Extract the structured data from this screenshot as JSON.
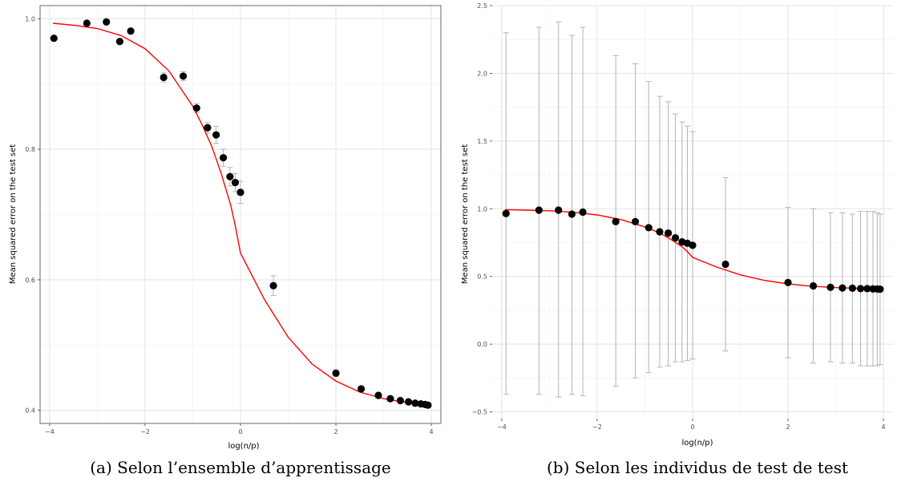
{
  "chart_data": [
    {
      "type": "scatter",
      "xlabel": "log(n/p)",
      "ylabel": "Mean squared error on the test set",
      "caption": "(a) Selon l’ensemble d’apprentissage",
      "xlim": [
        -4.2,
        4.2
      ],
      "ylim": [
        0.38,
        1.02
      ],
      "xticks": [
        -4,
        -2,
        0,
        2,
        4
      ],
      "yticks": [
        0.4,
        0.6,
        0.8,
        1.0
      ],
      "xtick_labels": [
        "−4",
        "−2",
        "0",
        "2",
        "4"
      ],
      "ytick_labels": [
        "0.4",
        "0.6",
        "0.8",
        "1.0"
      ],
      "grid": true,
      "colors": {
        "points": "#000000",
        "fit": "#ff0000",
        "errorbars": "#b3b3b3"
      },
      "x": [
        -3.91,
        -3.22,
        -2.81,
        -2.53,
        -2.3,
        -1.61,
        -1.2,
        -0.92,
        -0.69,
        -0.51,
        -0.36,
        -0.22,
        -0.11,
        0.0,
        0.69,
        2.0,
        2.53,
        2.89,
        3.14,
        3.35,
        3.52,
        3.66,
        3.78,
        3.87,
        3.93
      ],
      "y": [
        0.97,
        0.993,
        0.995,
        0.965,
        0.981,
        0.91,
        0.912,
        0.863,
        0.833,
        0.822,
        0.787,
        0.758,
        0.749,
        0.734,
        0.591,
        0.457,
        0.433,
        0.423,
        0.418,
        0.415,
        0.413,
        0.411,
        0.41,
        0.409,
        0.408
      ],
      "err": [
        0.0,
        0.002,
        0.002,
        0.002,
        0.002,
        0.007,
        0.007,
        0.007,
        0.008,
        0.013,
        0.013,
        0.014,
        0.014,
        0.017,
        0.015,
        0.005,
        0.002,
        0.002,
        0.002,
        0.002,
        0.001,
        0.001,
        0.001,
        0.001,
        0.001
      ],
      "fit_x": [
        -3.93,
        -3.5,
        -3.0,
        -2.5,
        -2.0,
        -1.5,
        -1.0,
        -0.8,
        -0.6,
        -0.4,
        -0.2,
        -0.1,
        0.0,
        0.5,
        1.0,
        1.5,
        2.0,
        2.5,
        3.0,
        3.5,
        3.93
      ],
      "fit_y": [
        0.993,
        0.99,
        0.985,
        0.974,
        0.954,
        0.92,
        0.866,
        0.837,
        0.804,
        0.762,
        0.713,
        0.68,
        0.641,
        0.57,
        0.512,
        0.471,
        0.445,
        0.428,
        0.418,
        0.412,
        0.408
      ]
    },
    {
      "type": "scatter",
      "xlabel": "log(n/p)",
      "ylabel": "Mean squared error on the test set",
      "caption": "(b) Selon les individus de test de test",
      "xlim": [
        -4.2,
        4.2
      ],
      "ylim": [
        -0.55,
        2.5
      ],
      "xticks": [
        -4,
        -2,
        0,
        2,
        4
      ],
      "yticks": [
        -0.5,
        0.0,
        0.5,
        1.0,
        1.5,
        2.0,
        2.5
      ],
      "xtick_labels": [
        "−4",
        "−2",
        "0",
        "2",
        "4"
      ],
      "ytick_labels": [
        "−0.5",
        "0.0",
        "0.5",
        "1.0",
        "1.5",
        "2.0",
        "2.5"
      ],
      "grid": true,
      "colors": {
        "points": "#000000",
        "fit": "#ff0000",
        "errorbars": "#b3b3b3"
      },
      "x": [
        -3.91,
        -3.22,
        -2.81,
        -2.53,
        -2.3,
        -1.61,
        -1.2,
        -0.92,
        -0.69,
        -0.51,
        -0.36,
        -0.22,
        -0.11,
        0.0,
        0.69,
        2.0,
        2.53,
        2.89,
        3.14,
        3.35,
        3.52,
        3.66,
        3.78,
        3.87,
        3.93
      ],
      "y": [
        0.965,
        0.99,
        0.99,
        0.96,
        0.975,
        0.905,
        0.905,
        0.86,
        0.83,
        0.82,
        0.785,
        0.755,
        0.745,
        0.73,
        0.59,
        0.455,
        0.43,
        0.42,
        0.415,
        0.413,
        0.41,
        0.41,
        0.408,
        0.407,
        0.406
      ],
      "lower": [
        -0.37,
        -0.37,
        -0.39,
        -0.37,
        -0.38,
        -0.31,
        -0.25,
        -0.21,
        -0.17,
        -0.16,
        -0.13,
        -0.13,
        -0.12,
        -0.11,
        -0.05,
        -0.1,
        -0.14,
        -0.13,
        -0.14,
        -0.14,
        -0.16,
        -0.16,
        -0.16,
        -0.16,
        -0.15
      ],
      "upper": [
        2.3,
        2.34,
        2.38,
        2.28,
        2.34,
        2.13,
        2.07,
        1.94,
        1.83,
        1.79,
        1.7,
        1.64,
        1.61,
        1.57,
        1.23,
        1.01,
        1.0,
        0.97,
        0.97,
        0.96,
        0.98,
        0.98,
        0.98,
        0.97,
        0.96
      ],
      "fit_x": [
        -3.93,
        -3.5,
        -3.0,
        -2.5,
        -2.0,
        -1.5,
        -1.0,
        -0.8,
        -0.6,
        -0.4,
        -0.2,
        -0.1,
        0.0,
        0.5,
        1.0,
        1.5,
        2.0,
        2.5,
        3.0,
        3.5,
        3.93
      ],
      "fit_y": [
        0.993,
        0.99,
        0.985,
        0.974,
        0.954,
        0.92,
        0.866,
        0.837,
        0.804,
        0.762,
        0.713,
        0.68,
        0.641,
        0.57,
        0.512,
        0.471,
        0.445,
        0.428,
        0.418,
        0.412,
        0.408
      ]
    }
  ]
}
